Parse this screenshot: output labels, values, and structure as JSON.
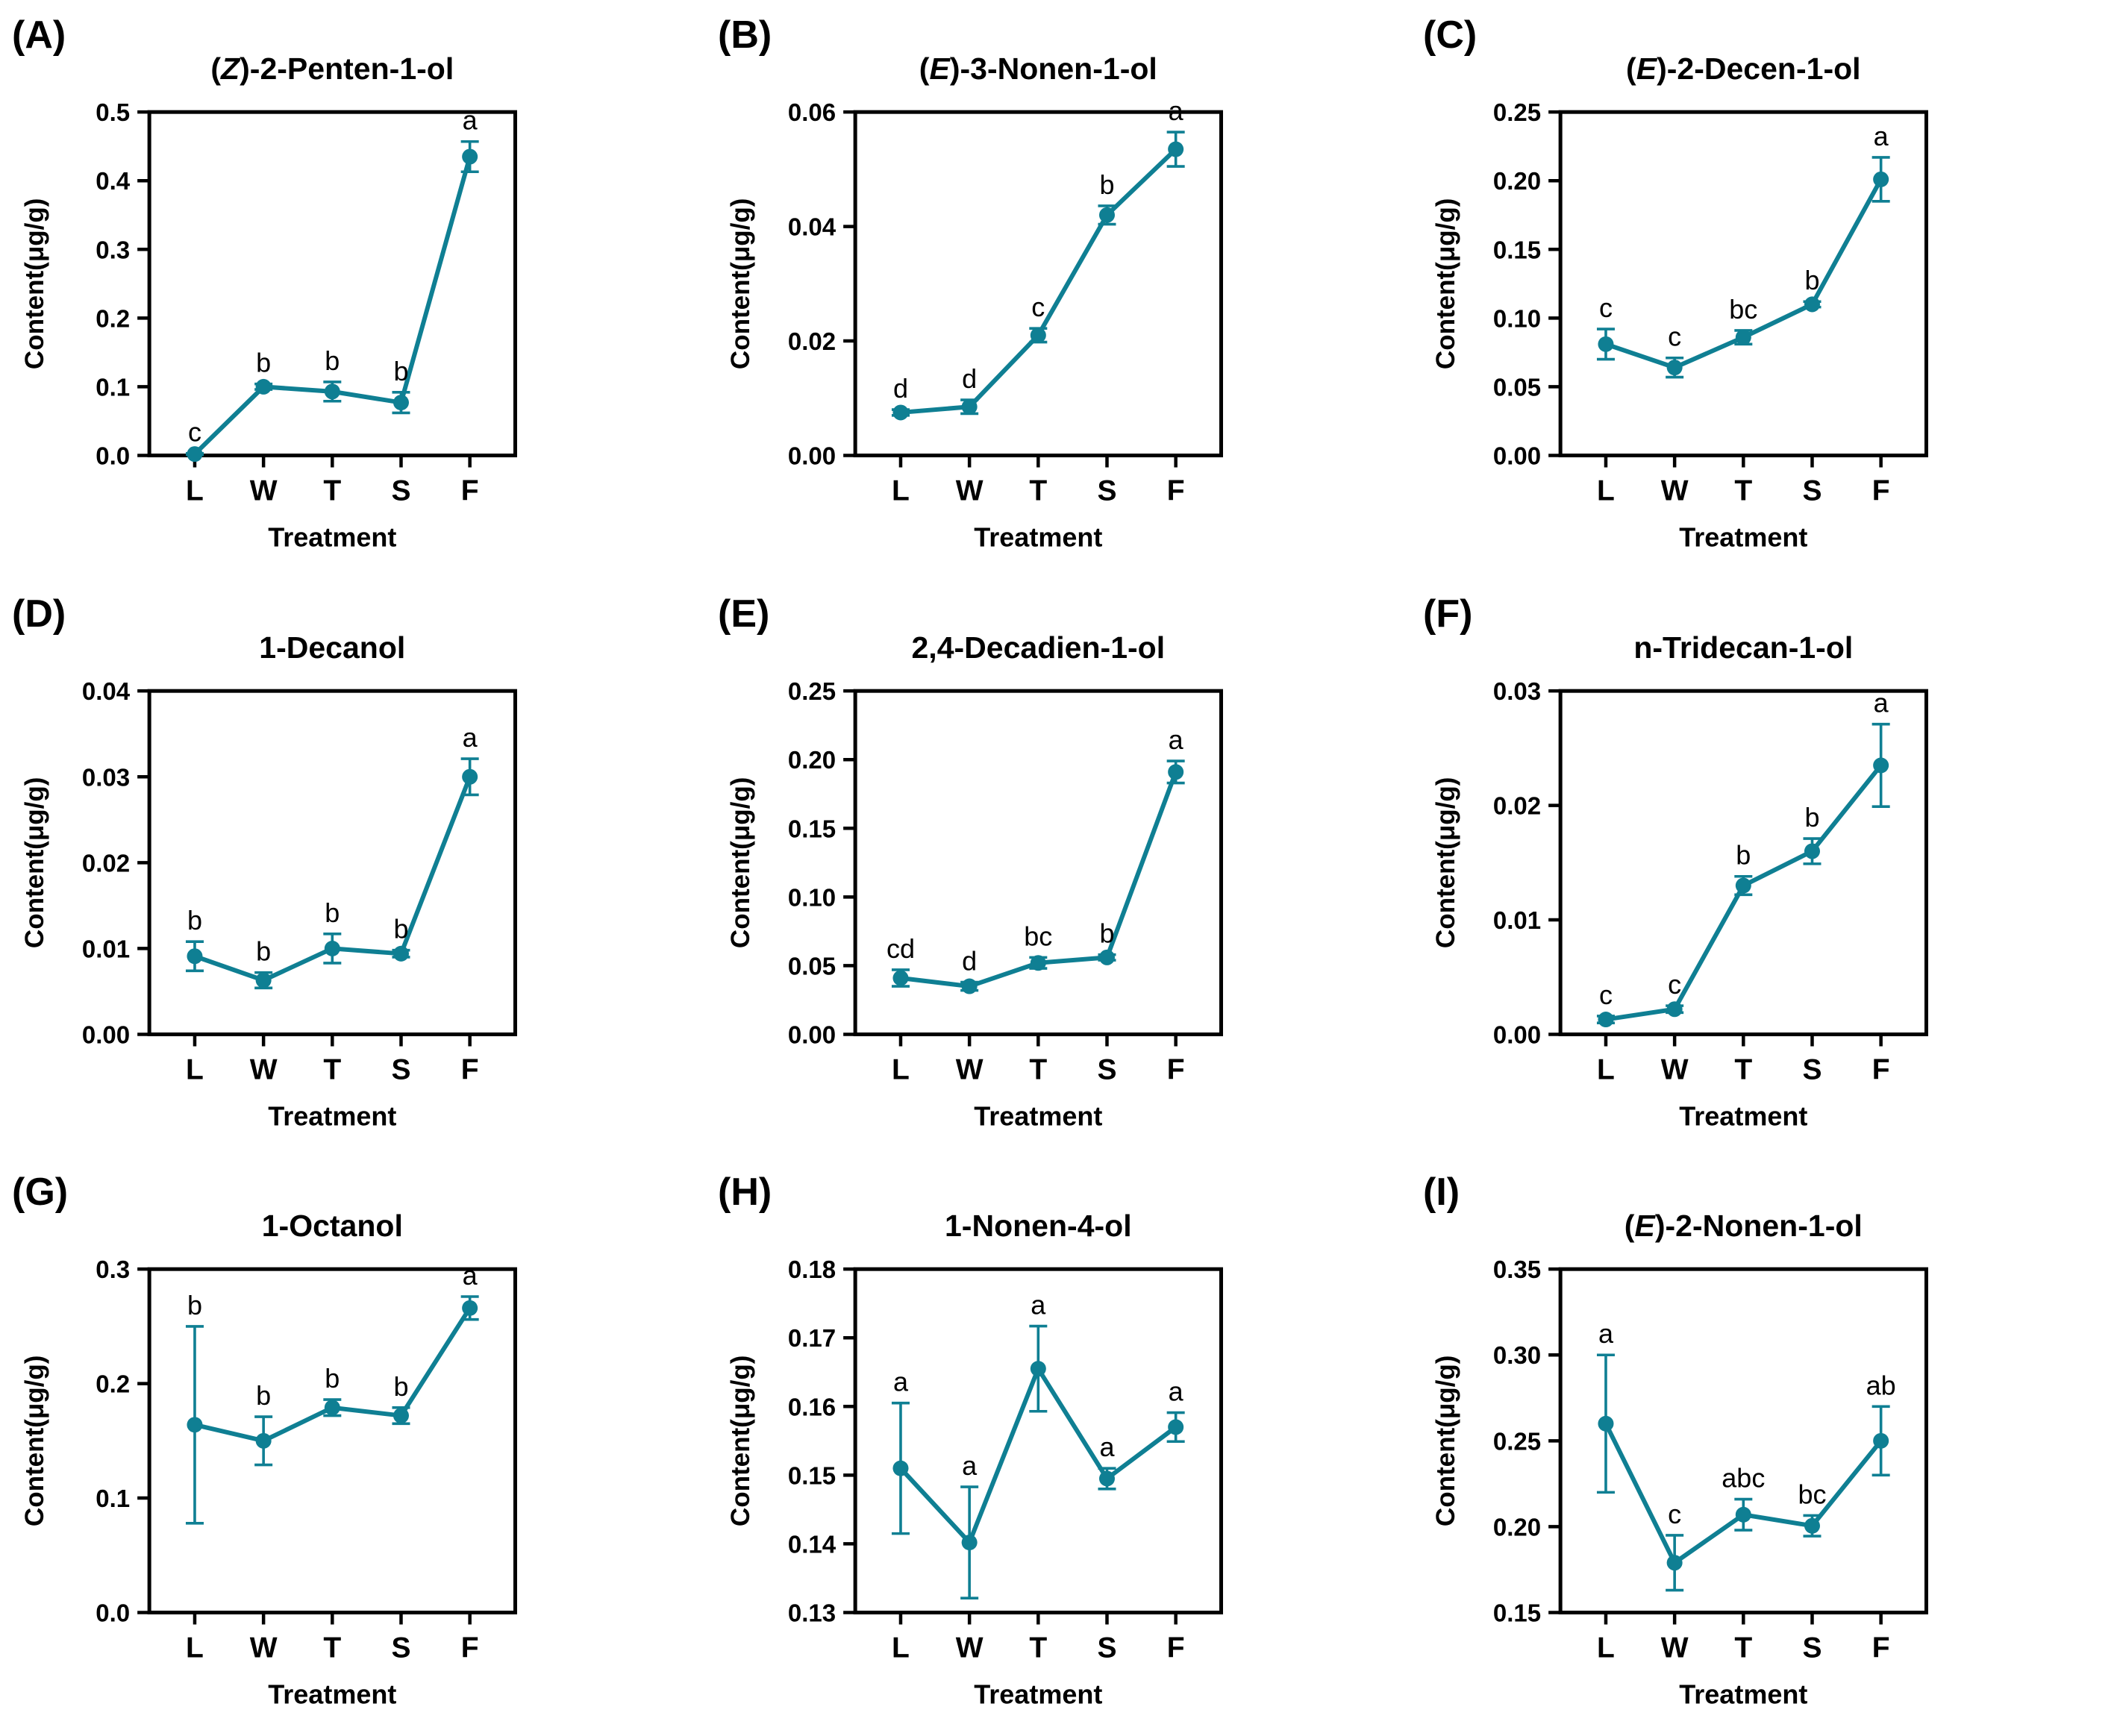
{
  "figure": {
    "line_color": "#0F7F93",
    "axis_color": "#000000",
    "xlabel": "Treatment",
    "ylabel": "Content(μg/g)",
    "categories": [
      "L",
      "W",
      "T",
      "S",
      "F"
    ]
  },
  "chart_data": [
    {
      "type": "line",
      "panel_letter": "(A)",
      "title": "(Z)-2-Penten-1-ol",
      "title_open": "(",
      "title_italic": "Z",
      "title_close": ")",
      "title_rest": "-2-Penten-1-ol",
      "xlabel": "Treatment",
      "ylabel": "Content(μg/g)",
      "categories": [
        "L",
        "W",
        "T",
        "S",
        "F"
      ],
      "values": [
        0.002,
        0.1,
        0.093,
        0.077,
        0.435
      ],
      "errors": [
        0.001,
        0.004,
        0.014,
        0.015,
        0.022
      ],
      "sig_letters": [
        "c",
        "b",
        "b",
        "b",
        "a"
      ],
      "ylim": [
        0,
        0.5
      ],
      "yticks": [
        "0.0",
        "0.1",
        "0.2",
        "0.3",
        "0.4",
        "0.5"
      ],
      "grid": false,
      "legend_position": "none"
    },
    {
      "type": "line",
      "panel_letter": "(B)",
      "title": "(E)-3-Nonen-1-ol",
      "title_open": "(",
      "title_italic": "E",
      "title_close": ")",
      "title_rest": "-3-Nonen-1-ol",
      "xlabel": "Treatment",
      "ylabel": "Content(μg/g)",
      "categories": [
        "L",
        "W",
        "T",
        "S",
        "F"
      ],
      "values": [
        0.0075,
        0.0085,
        0.021,
        0.042,
        0.0535
      ],
      "errors": [
        0.0005,
        0.0012,
        0.0012,
        0.0016,
        0.003
      ],
      "sig_letters": [
        "d",
        "d",
        "c",
        "b",
        "a"
      ],
      "ylim": [
        0,
        0.06
      ],
      "yticks": [
        "0.00",
        "0.02",
        "0.04",
        "0.06"
      ],
      "grid": false,
      "legend_position": "none"
    },
    {
      "type": "line",
      "panel_letter": "(C)",
      "title": "(E)-2-Decen-1-ol",
      "title_open": "(",
      "title_italic": "E",
      "title_close": ")",
      "title_rest": "-2-Decen-1-ol",
      "xlabel": "Treatment",
      "ylabel": "Content(μg/g)",
      "categories": [
        "L",
        "W",
        "T",
        "S",
        "F"
      ],
      "values": [
        0.081,
        0.064,
        0.086,
        0.11,
        0.201
      ],
      "errors": [
        0.011,
        0.007,
        0.005,
        0.002,
        0.016
      ],
      "sig_letters": [
        "c",
        "c",
        "bc",
        "b",
        "a"
      ],
      "ylim": [
        0,
        0.25
      ],
      "yticks": [
        "0.00",
        "0.05",
        "0.10",
        "0.15",
        "0.20",
        "0.25"
      ],
      "grid": false,
      "legend_position": "none"
    },
    {
      "type": "line",
      "panel_letter": "(D)",
      "title": "1-Decanol",
      "title_open": "",
      "title_italic": "",
      "title_close": "",
      "title_rest": "1-Decanol",
      "xlabel": "Treatment",
      "ylabel": "Content(μg/g)",
      "categories": [
        "L",
        "W",
        "T",
        "S",
        "F"
      ],
      "values": [
        0.0091,
        0.0063,
        0.01,
        0.0094,
        0.03
      ],
      "errors": [
        0.0017,
        0.0009,
        0.0017,
        0.0004,
        0.0021
      ],
      "sig_letters": [
        "b",
        "b",
        "b",
        "b",
        "a"
      ],
      "ylim": [
        0,
        0.04
      ],
      "yticks": [
        "0.00",
        "0.01",
        "0.02",
        "0.03",
        "0.04"
      ],
      "grid": false,
      "legend_position": "none"
    },
    {
      "type": "line",
      "panel_letter": "(E)",
      "title": "2,4-Decadien-1-ol",
      "title_open": "",
      "title_italic": "",
      "title_close": "",
      "title_rest": "2,4-Decadien-1-ol",
      "xlabel": "Treatment",
      "ylabel": "Content(μg/g)",
      "categories": [
        "L",
        "W",
        "T",
        "S",
        "F"
      ],
      "values": [
        0.041,
        0.035,
        0.052,
        0.056,
        0.191
      ],
      "errors": [
        0.006,
        0.003,
        0.004,
        0.002,
        0.008
      ],
      "sig_letters": [
        "cd",
        "d",
        "bc",
        "b",
        "a"
      ],
      "ylim": [
        0,
        0.25
      ],
      "yticks": [
        "0.00",
        "0.05",
        "0.10",
        "0.15",
        "0.20",
        "0.25"
      ],
      "grid": false,
      "legend_position": "none"
    },
    {
      "type": "line",
      "panel_letter": "(F)",
      "title": "n-Tridecan-1-ol",
      "title_open": "",
      "title_italic": "",
      "title_close": "",
      "title_rest": "n-Tridecan-1-ol",
      "xlabel": "Treatment",
      "ylabel": "Content(μg/g)",
      "categories": [
        "L",
        "W",
        "T",
        "S",
        "F"
      ],
      "values": [
        0.0013,
        0.0022,
        0.013,
        0.016,
        0.0235
      ],
      "errors": [
        0.0003,
        0.0003,
        0.0008,
        0.0011,
        0.0036
      ],
      "sig_letters": [
        "c",
        "c",
        "b",
        "b",
        "a"
      ],
      "ylim": [
        0,
        0.03
      ],
      "yticks": [
        "0.00",
        "0.01",
        "0.02",
        "0.03"
      ],
      "grid": false,
      "legend_position": "none"
    },
    {
      "type": "line",
      "panel_letter": "(G)",
      "title": "1-Octanol",
      "title_open": "",
      "title_italic": "",
      "title_close": "",
      "title_rest": "1-Octanol",
      "xlabel": "Treatment",
      "ylabel": "Content(μg/g)",
      "categories": [
        "L",
        "W",
        "T",
        "S",
        "F"
      ],
      "values": [
        0.164,
        0.15,
        0.179,
        0.172,
        0.266
      ],
      "errors": [
        0.086,
        0.021,
        0.007,
        0.007,
        0.01
      ],
      "sig_letters": [
        "b",
        "b",
        "b",
        "b",
        "a"
      ],
      "ylim": [
        0,
        0.3
      ],
      "yticks": [
        "0.0",
        "0.1",
        "0.2",
        "0.3"
      ],
      "grid": false,
      "legend_position": "none"
    },
    {
      "type": "line",
      "panel_letter": "(H)",
      "title": "1-Nonen-4-ol",
      "title_open": "",
      "title_italic": "",
      "title_close": "",
      "title_rest": "1-Nonen-4-ol",
      "xlabel": "Treatment",
      "ylabel": "Content(μg/g)",
      "categories": [
        "L",
        "W",
        "T",
        "S",
        "F"
      ],
      "values": [
        0.151,
        0.1402,
        0.1655,
        0.1495,
        0.157
      ],
      "errors": [
        0.0095,
        0.0081,
        0.0062,
        0.0015,
        0.0021
      ],
      "sig_letters": [
        "a",
        "a",
        "a",
        "a",
        "a"
      ],
      "ylim": [
        0.13,
        0.18
      ],
      "yticks": [
        "0.13",
        "0.14",
        "0.15",
        "0.16",
        "0.17",
        "0.18"
      ],
      "grid": false,
      "legend_position": "none"
    },
    {
      "type": "line",
      "panel_letter": "(I)",
      "title": "(E)-2-Nonen-1-ol",
      "title_open": "(",
      "title_italic": "E",
      "title_close": ")",
      "title_rest": "-2-Nonen-1-ol",
      "xlabel": "Treatment",
      "ylabel": "Content(μg/g)",
      "categories": [
        "L",
        "W",
        "T",
        "S",
        "F"
      ],
      "values": [
        0.26,
        0.179,
        0.207,
        0.2005,
        0.25
      ],
      "errors": [
        0.04,
        0.016,
        0.009,
        0.006,
        0.02
      ],
      "sig_letters": [
        "a",
        "c",
        "abc",
        "bc",
        "ab"
      ],
      "ylim": [
        0.15,
        0.35
      ],
      "yticks": [
        "0.15",
        "0.20",
        "0.25",
        "0.30",
        "0.35"
      ],
      "grid": false,
      "legend_position": "none"
    }
  ]
}
